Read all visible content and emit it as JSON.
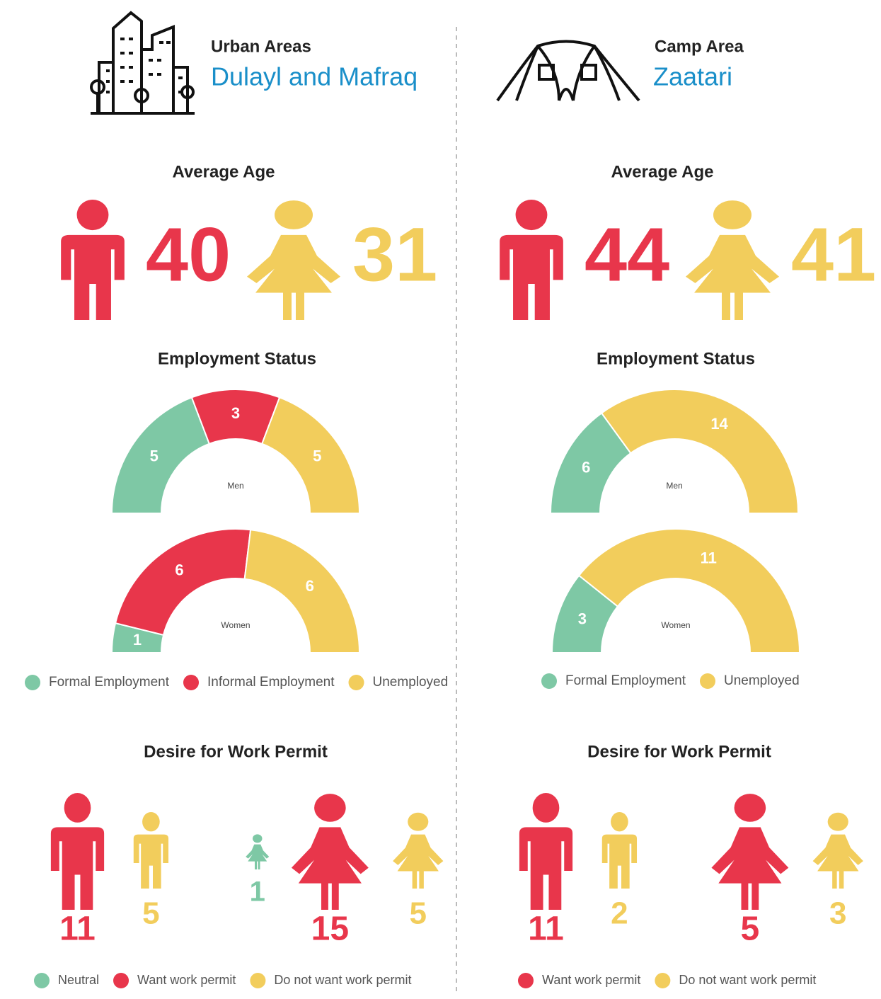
{
  "panels": [
    {
      "area_type": "Urban Areas",
      "area_name": "Dulayl and Mafraq",
      "age": {
        "title": "Average Age",
        "men": 40,
        "women": 31,
        "men_color": "#e8364b",
        "women_color": "#f2cd5c"
      },
      "employment": {
        "title": "Employment Status",
        "categories": [
          "Formal Employment",
          "Informal Employment",
          "Unemployed"
        ],
        "colors": [
          "#7ec8a5",
          "#e8364b",
          "#f2cd5c"
        ],
        "groups": [
          {
            "label": "Men",
            "values": [
              5,
              3,
              5
            ]
          },
          {
            "label": "Women",
            "values": [
              1,
              6,
              6
            ]
          }
        ]
      },
      "permit": {
        "title": "Desire for Work Permit",
        "categories": [
          "Neutral",
          "Want work permit",
          "Do not want work permit"
        ],
        "colors": [
          "#7ec8a5",
          "#e8364b",
          "#f2cd5c"
        ],
        "men": [
          null,
          11,
          5
        ],
        "women": [
          1,
          15,
          5
        ]
      }
    },
    {
      "area_type": "Camp Area",
      "area_name": "Zaatari",
      "age": {
        "title": "Average Age",
        "men": 44,
        "women": 41,
        "men_color": "#e8364b",
        "women_color": "#f2cd5c"
      },
      "employment": {
        "title": "Employment Status",
        "categories": [
          "Formal Employment",
          "Unemployed"
        ],
        "colors": [
          "#7ec8a5",
          "#f2cd5c"
        ],
        "groups": [
          {
            "label": "Men",
            "values": [
              6,
              14
            ]
          },
          {
            "label": "Women",
            "values": [
              3,
              11
            ]
          }
        ]
      },
      "permit": {
        "title": "Desire for Work Permit",
        "categories": [
          "Want work permit",
          "Do not want work permit"
        ],
        "colors": [
          "#e8364b",
          "#f2cd5c"
        ],
        "men": [
          11,
          2
        ],
        "women": [
          5,
          3
        ]
      }
    }
  ]
}
